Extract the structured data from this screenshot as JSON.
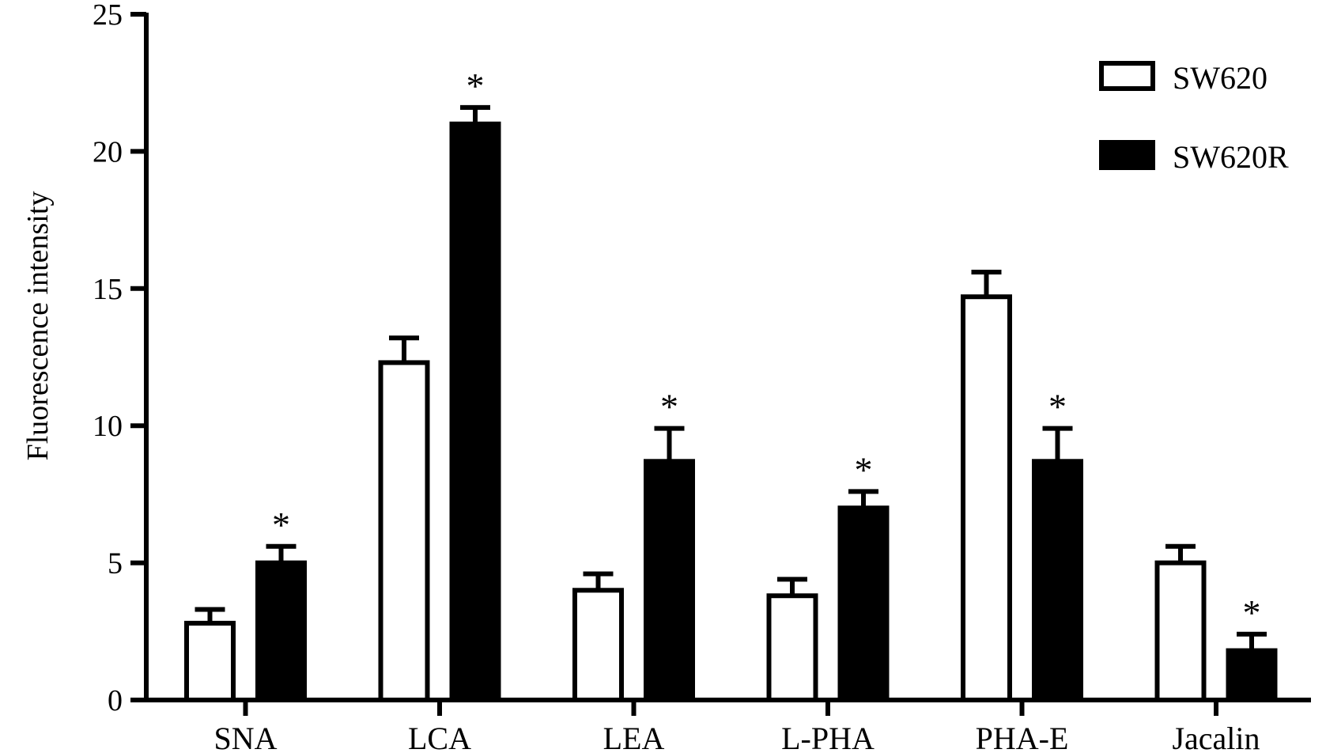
{
  "chart_data": {
    "type": "bar",
    "title": "",
    "xlabel": "",
    "ylabel": "Fluorescence intensity",
    "ylim": [
      0,
      25
    ],
    "yticks": [
      0,
      5,
      10,
      15,
      20,
      25
    ],
    "grid": false,
    "legend_position": "top-right",
    "categories": [
      "SNA",
      "LCA",
      "LEA",
      "L-PHA",
      "PHA-E",
      "Jacalin"
    ],
    "series": [
      {
        "name": "SW620",
        "fill": "#ffffff",
        "values": [
          2.8,
          12.3,
          4.0,
          3.8,
          14.7,
          5.0
        ],
        "errors": [
          0.5,
          0.9,
          0.6,
          0.6,
          0.9,
          0.6
        ]
      },
      {
        "name": "SW620R",
        "fill": "#000000",
        "values": [
          5.0,
          21.0,
          8.7,
          7.0,
          8.7,
          1.8
        ],
        "errors": [
          0.6,
          0.6,
          1.2,
          0.6,
          1.2,
          0.6
        ]
      }
    ],
    "annotations": [
      {
        "category": "SNA",
        "series": "SW620R",
        "text": "*"
      },
      {
        "category": "LCA",
        "series": "SW620R",
        "text": "*"
      },
      {
        "category": "LEA",
        "series": "SW620R",
        "text": "*"
      },
      {
        "category": "L-PHA",
        "series": "SW620R",
        "text": "*"
      },
      {
        "category": "PHA-E",
        "series": "SW620R",
        "text": "*"
      },
      {
        "category": "Jacalin",
        "series": "SW620R",
        "text": "*"
      }
    ]
  }
}
